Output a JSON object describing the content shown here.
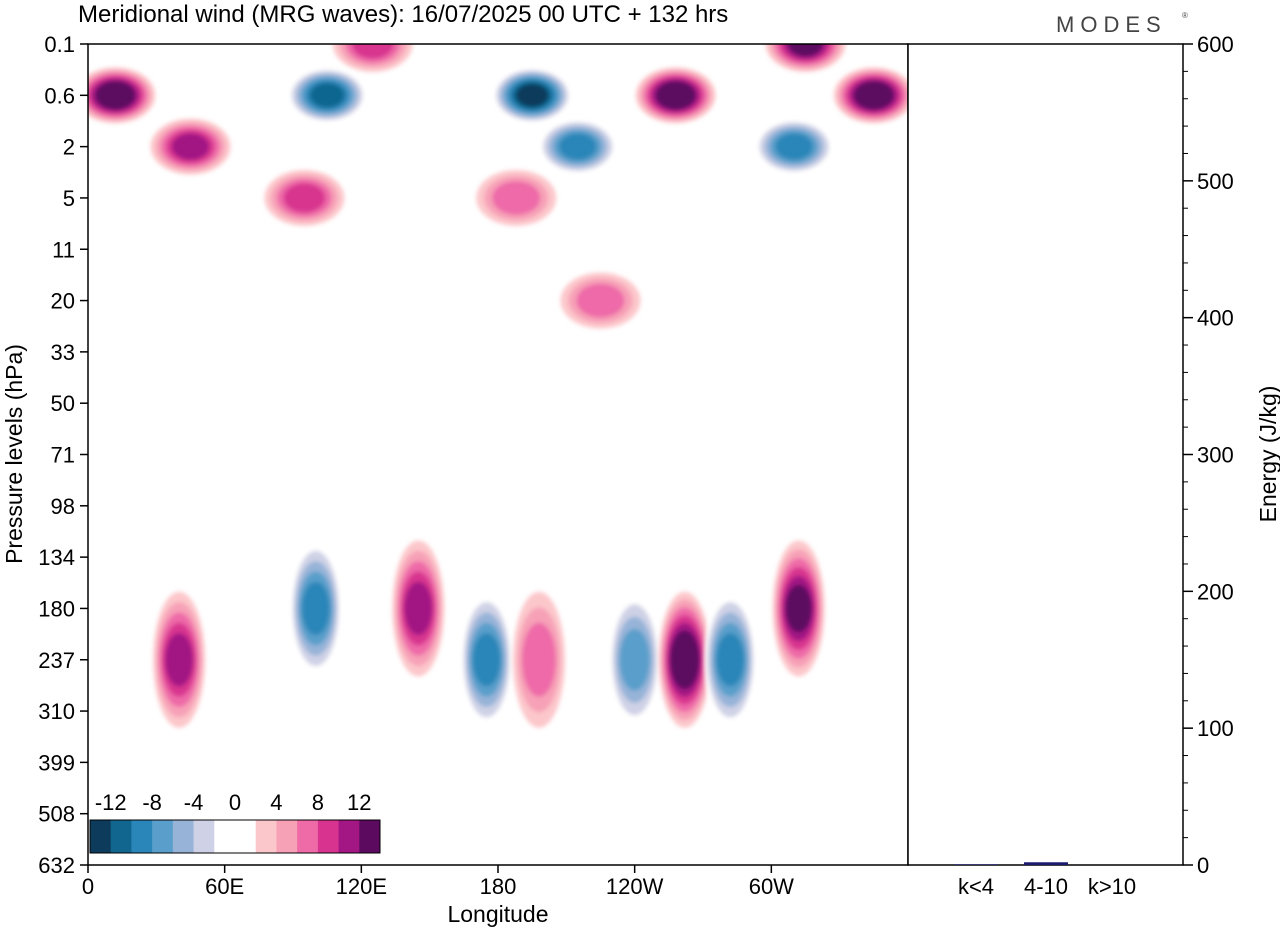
{
  "chart_data": [
    {
      "type": "heatmap",
      "title": "Meridional wind (MRG waves):  16/07/2025  00 UTC  + 132 hrs",
      "xlabel": "Longitude",
      "ylabel": "Pressure levels (hPa)",
      "x_ticks": [
        "0",
        "60E",
        "120E",
        "180",
        "120W",
        "60W"
      ],
      "x_tick_degrees": [
        0,
        60,
        120,
        180,
        240,
        300
      ],
      "x_range_degrees": [
        0,
        360
      ],
      "y_ticks": [
        "0.1",
        "0.6",
        "2",
        "5",
        "11",
        "20",
        "33",
        "50",
        "71",
        "98",
        "134",
        "180",
        "237",
        "310",
        "399",
        "508",
        "632"
      ],
      "colorbar": {
        "labels": [
          "-12",
          "-8",
          "-4",
          "0",
          "4",
          "8",
          "12"
        ],
        "colors": [
          "#0d3b5b",
          "#11668f",
          "#2a86b8",
          "#5a9fcb",
          "#97b4d8",
          "#cfd2e6",
          "#ffffff",
          "#ffffff",
          "#fcc7cb",
          "#f7a1b7",
          "#ee6ba8",
          "#d8348f",
          "#a21784",
          "#5c0a60"
        ]
      },
      "features": [
        {
          "lon": 12,
          "level": "0.6",
          "value": 14
        },
        {
          "lon": 45,
          "level": "2",
          "value": 10
        },
        {
          "lon": 95,
          "level": "5",
          "value": 8
        },
        {
          "lon": 125,
          "level": "0.1",
          "value": 8
        },
        {
          "lon": 105,
          "level": "0.6",
          "value": -12
        },
        {
          "lon": 195,
          "level": "0.6",
          "value": -14
        },
        {
          "lon": 215,
          "level": "2",
          "value": -10
        },
        {
          "lon": 258,
          "level": "0.6",
          "value": 14
        },
        {
          "lon": 315,
          "level": "0.1",
          "value": 12
        },
        {
          "lon": 345,
          "level": "0.6",
          "value": 14
        },
        {
          "lon": 310,
          "level": "2",
          "value": -10
        },
        {
          "lon": 225,
          "level": "20",
          "value": 6
        },
        {
          "lon": 188,
          "level": "5",
          "value": 5
        },
        {
          "lon": 40,
          "level": "237",
          "value": 9
        },
        {
          "lon": 100,
          "level": "180",
          "value": -10
        },
        {
          "lon": 145,
          "level": "180",
          "value": 10
        },
        {
          "lon": 175,
          "level": "237",
          "value": -10
        },
        {
          "lon": 198,
          "level": "237",
          "value": 6
        },
        {
          "lon": 240,
          "level": "237",
          "value": -7
        },
        {
          "lon": 262,
          "level": "237",
          "value": 14
        },
        {
          "lon": 282,
          "level": "237",
          "value": -9
        },
        {
          "lon": 312,
          "level": "180",
          "value": 12
        }
      ]
    },
    {
      "type": "bar",
      "ylabel": "Energy (J/kg)",
      "categories": [
        "k<4",
        "4-10",
        "k>10"
      ],
      "values": [
        0.5,
        2,
        0
      ],
      "ylim": [
        0,
        600
      ],
      "y_ticks": [
        "0",
        "100",
        "200",
        "300",
        "400",
        "500",
        "600"
      ],
      "bar_color": "#1a1a6e"
    }
  ],
  "brand": "MODES",
  "brand_mark": "®"
}
